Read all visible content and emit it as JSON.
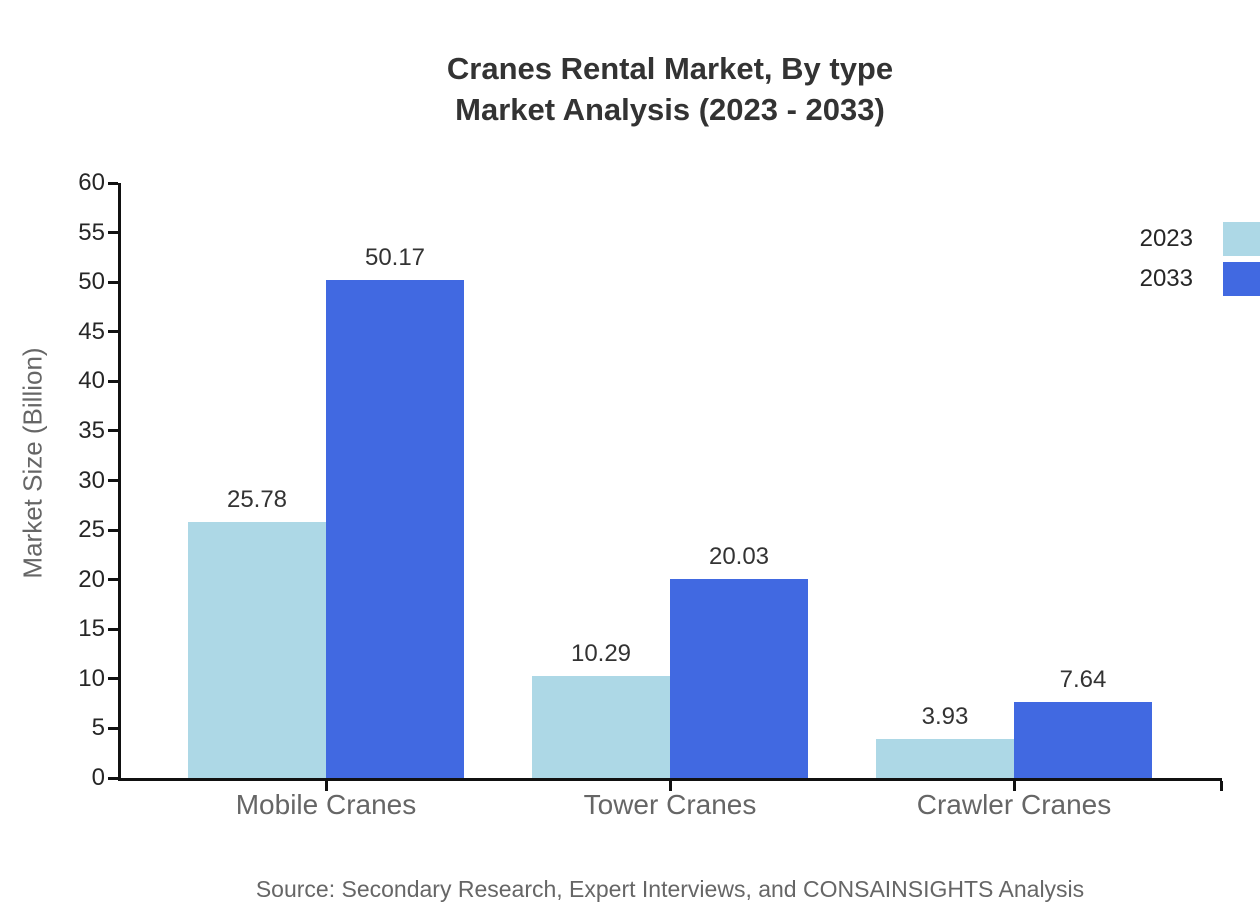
{
  "title": {
    "line1": "Cranes Rental Market, By type",
    "line2": "Market Analysis (2023 - 2033)"
  },
  "source": "Source: Secondary Research, Expert Interviews, and CONSAINSIGHTS Analysis",
  "chart_data": {
    "type": "bar",
    "categories": [
      "Mobile Cranes",
      "Tower Cranes",
      "Crawler Cranes"
    ],
    "series": [
      {
        "name": "2023",
        "color": "#ADD8E6",
        "values": [
          25.78,
          10.29,
          3.93
        ]
      },
      {
        "name": "2033",
        "color": "#4169E1",
        "values": [
          50.17,
          20.03,
          7.64
        ]
      }
    ],
    "ylabel": "Market Size (Billion)",
    "xlabel": "",
    "ylim": [
      0,
      60
    ],
    "ytick_step": 5,
    "grid": false,
    "legend_position": "top-right",
    "value_labels_shown": true,
    "value_label_decimals": 2
  },
  "colors": {
    "axis": "#111111",
    "tick_label": "#262626",
    "title_text": "#333333",
    "muted_label": "#666666",
    "background": "#ffffff"
  }
}
